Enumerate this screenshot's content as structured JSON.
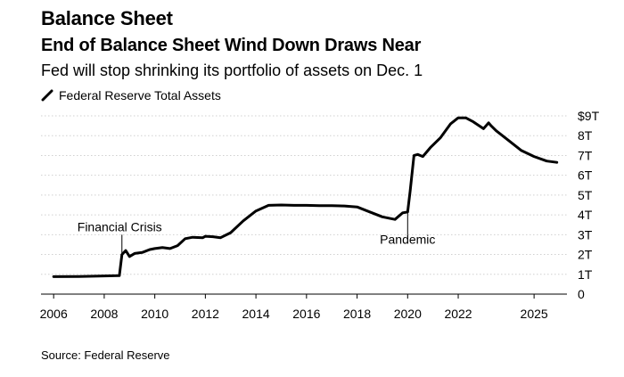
{
  "header": {
    "kicker": "Balance Sheet",
    "headline": "End of Balance Sheet Wind Down Draws Near",
    "subtitle": "Fed will stop shrinking its portfolio of assets on Dec. 1"
  },
  "footer": {
    "source": "Source: Federal Reserve"
  },
  "chart_data": {
    "type": "line",
    "title": "End of Balance Sheet Wind Down Draws Near",
    "subtitle": "Fed will stop shrinking its portfolio of assets on Dec. 1",
    "legend": [
      "Federal Reserve Total Assets"
    ],
    "legend_position": "top-left",
    "xlabel": "",
    "ylabel": "",
    "xlim": [
      2005.5,
      2026.3
    ],
    "ylim": [
      0,
      9
    ],
    "grid": true,
    "line_color": "#000000",
    "x_ticks": [
      2006,
      2008,
      2010,
      2012,
      2014,
      2016,
      2018,
      2020,
      2022,
      2025
    ],
    "x_tick_labels": [
      "2006",
      "2008",
      "2010",
      "2012",
      "2014",
      "2016",
      "2018",
      "2020",
      "2022",
      "2025"
    ],
    "y_ticks": [
      0,
      1,
      2,
      3,
      4,
      5,
      6,
      7,
      8,
      9
    ],
    "y_tick_labels": [
      "0",
      "1T",
      "2T",
      "3T",
      "4T",
      "5T",
      "6T",
      "7T",
      "8T",
      "$9T"
    ],
    "annotations": [
      {
        "label": "Financial Crisis",
        "x": 2008.7,
        "y": 2.0
      },
      {
        "label": "Pandemic",
        "x": 2020.0,
        "y": 4.2
      }
    ],
    "series": [
      {
        "name": "Federal Reserve Total Assets",
        "x": [
          2006.0,
          2007.0,
          2008.0,
          2008.6,
          2008.7,
          2008.85,
          2009.0,
          2009.2,
          2009.5,
          2009.8,
          2010.0,
          2010.3,
          2010.6,
          2010.9,
          2011.2,
          2011.5,
          2011.9,
          2012.0,
          2012.3,
          2012.6,
          2013.0,
          2013.5,
          2014.0,
          2014.5,
          2015.0,
          2015.5,
          2016.0,
          2016.5,
          2017.0,
          2017.5,
          2018.0,
          2018.5,
          2019.0,
          2019.5,
          2019.8,
          2020.0,
          2020.1,
          2020.25,
          2020.4,
          2020.6,
          2020.9,
          2021.3,
          2021.7,
          2022.0,
          2022.3,
          2022.6,
          2023.0,
          2023.2,
          2023.3,
          2023.5,
          2024.0,
          2024.5,
          2025.0,
          2025.5,
          2025.9
        ],
        "values": [
          0.88,
          0.89,
          0.92,
          0.93,
          2.0,
          2.2,
          1.9,
          2.05,
          2.1,
          2.25,
          2.3,
          2.35,
          2.3,
          2.45,
          2.8,
          2.87,
          2.85,
          2.92,
          2.9,
          2.85,
          3.1,
          3.7,
          4.2,
          4.48,
          4.5,
          4.48,
          4.48,
          4.47,
          4.47,
          4.45,
          4.4,
          4.15,
          3.9,
          3.77,
          4.1,
          4.15,
          5.2,
          7.0,
          7.05,
          6.95,
          7.4,
          7.9,
          8.6,
          8.9,
          8.9,
          8.7,
          8.35,
          8.65,
          8.5,
          8.25,
          7.75,
          7.25,
          6.95,
          6.72,
          6.65
        ]
      }
    ]
  }
}
